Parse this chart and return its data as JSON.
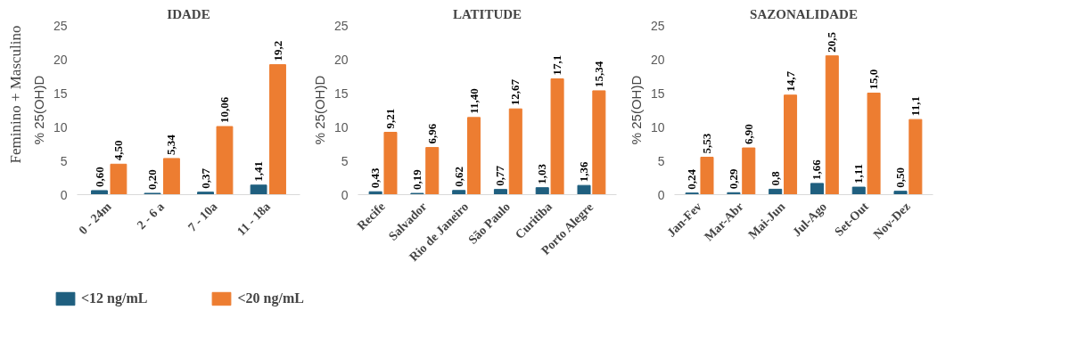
{
  "chart_data": [
    {
      "type": "bar",
      "title": "IDADE",
      "ylabel": "% 25(OH)D",
      "annotations": [
        "Feminino + Masculino"
      ],
      "categories": [
        "0 - 24m",
        "2 - 6 a",
        "7 - 10a",
        "11 - 18a"
      ],
      "ylim": [
        0,
        25
      ],
      "yticks": [
        0,
        5,
        10,
        15,
        20,
        25
      ],
      "legend": "bottom",
      "data_labels": true,
      "series": [
        {
          "name": "<12 ng/mL",
          "color": "#1f5f7f",
          "values": [
            0.6,
            0.2,
            0.37,
            1.41
          ],
          "value_labels": [
            "0,60",
            "0,20",
            "0,37",
            "1,41"
          ]
        },
        {
          "name": "<20 ng/mL",
          "color": "#ed7d31",
          "values": [
            4.5,
            5.34,
            10.06,
            19.2
          ],
          "value_labels": [
            "4,50",
            "5,34",
            "10,06",
            "19,2"
          ]
        }
      ]
    },
    {
      "type": "bar",
      "title": "LATITUDE",
      "ylabel": "% 25(OH)D",
      "categories": [
        "Recife",
        "Salvador",
        "Rio de Janeiro",
        "São Paulo",
        "Curitiba",
        "Porto Alegre"
      ],
      "ylim": [
        0,
        25
      ],
      "yticks": [
        0,
        5,
        10,
        15,
        20,
        25
      ],
      "data_labels": true,
      "series": [
        {
          "color": "#1f5f7f",
          "values": [
            0.43,
            0.19,
            0.62,
            0.77,
            1.03,
            1.36
          ],
          "value_labels": [
            "0,43",
            "0,19",
            "0,62",
            "0,77",
            "1,03",
            "1,36"
          ]
        },
        {
          "color": "#ed7d31",
          "values": [
            9.21,
            6.96,
            11.4,
            12.67,
            17.1,
            15.34
          ],
          "value_labels": [
            "9,21",
            "6,96",
            "11,40",
            "12,67",
            "17,1",
            "15,34"
          ]
        }
      ]
    },
    {
      "type": "bar",
      "title": "SAZONALIDADE",
      "ylabel": "% 25(OH)D",
      "categories": [
        "Jan-Fev",
        "Mar-Abr",
        "Mai-Jun",
        "Jul-Ago",
        "Set-Out",
        "Nov-Dez"
      ],
      "ylim": [
        0,
        25
      ],
      "yticks": [
        0,
        5,
        10,
        15,
        20,
        25
      ],
      "data_labels": true,
      "series": [
        {
          "color": "#1f5f7f",
          "values": [
            0.24,
            0.29,
            0.8,
            1.66,
            1.11,
            0.5
          ],
          "value_labels": [
            "0,24",
            "0,29",
            "0,8",
            "1,66",
            "1,11",
            "0,50"
          ]
        },
        {
          "color": "#ed7d31",
          "values": [
            5.53,
            6.9,
            14.7,
            20.5,
            15.0,
            11.1
          ],
          "value_labels": [
            "5,53",
            "6,90",
            "14,7",
            "20,5",
            "15,0",
            "11,1"
          ]
        }
      ]
    }
  ]
}
